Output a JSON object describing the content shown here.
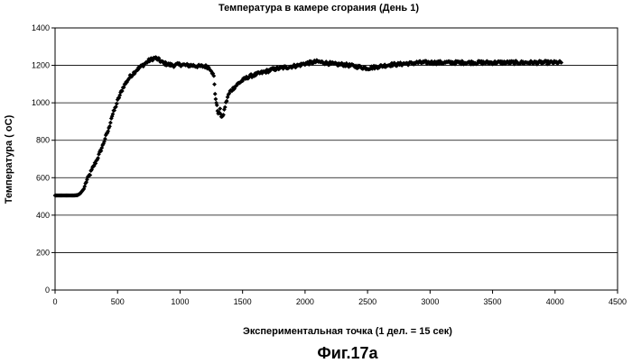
{
  "figure_caption": "Фиг.17а",
  "chart_data": {
    "type": "scatter",
    "title": "Температура в камере сгорания (День 1)",
    "xlabel": "Экспериментальная точка (1 дел. = 15 сек)",
    "ylabel": "Температура ( оС)",
    "xlim": [
      0,
      4500
    ],
    "ylim": [
      0,
      1400
    ],
    "x_ticks": [
      0,
      500,
      1000,
      1500,
      2000,
      2500,
      3000,
      3500,
      4000,
      4500
    ],
    "y_ticks": [
      0,
      200,
      400,
      600,
      800,
      1000,
      1200,
      1400
    ],
    "grid": "horizontal",
    "marker": "diamond",
    "marker_color": "#000000",
    "series": [
      {
        "points": [
          [
            0,
            505
          ],
          [
            50,
            505
          ],
          [
            100,
            505
          ],
          [
            150,
            505
          ],
          [
            180,
            507
          ],
          [
            200,
            515
          ],
          [
            230,
            540
          ],
          [
            250,
            580
          ],
          [
            280,
            620
          ],
          [
            300,
            650
          ],
          [
            330,
            690
          ],
          [
            350,
            720
          ],
          [
            380,
            770
          ],
          [
            400,
            810
          ],
          [
            430,
            860
          ],
          [
            450,
            920
          ],
          [
            480,
            970
          ],
          [
            500,
            1010
          ],
          [
            530,
            1060
          ],
          [
            550,
            1090
          ],
          [
            580,
            1120
          ],
          [
            600,
            1140
          ],
          [
            630,
            1160
          ],
          [
            650,
            1175
          ],
          [
            680,
            1190
          ],
          [
            700,
            1200
          ],
          [
            730,
            1215
          ],
          [
            750,
            1225
          ],
          [
            780,
            1235
          ],
          [
            800,
            1240
          ],
          [
            830,
            1230
          ],
          [
            860,
            1215
          ],
          [
            900,
            1205
          ],
          [
            950,
            1200
          ],
          [
            1000,
            1205
          ],
          [
            1050,
            1200
          ],
          [
            1100,
            1200
          ],
          [
            1150,
            1195
          ],
          [
            1200,
            1195
          ],
          [
            1230,
            1190
          ],
          [
            1250,
            1175
          ],
          [
            1270,
            1140
          ],
          [
            1280,
            1050
          ],
          [
            1290,
            1000
          ],
          [
            1300,
            960
          ],
          [
            1310,
            940
          ],
          [
            1320,
            960
          ],
          [
            1330,
            930
          ],
          [
            1340,
            920
          ],
          [
            1360,
            980
          ],
          [
            1380,
            1030
          ],
          [
            1400,
            1060
          ],
          [
            1430,
            1080
          ],
          [
            1460,
            1100
          ],
          [
            1500,
            1120
          ],
          [
            1550,
            1140
          ],
          [
            1600,
            1150
          ],
          [
            1650,
            1160
          ],
          [
            1700,
            1170
          ],
          [
            1750,
            1180
          ],
          [
            1800,
            1185
          ],
          [
            1850,
            1190
          ],
          [
            1900,
            1195
          ],
          [
            1950,
            1200
          ],
          [
            2000,
            1210
          ],
          [
            2050,
            1215
          ],
          [
            2100,
            1220
          ],
          [
            2150,
            1215
          ],
          [
            2200,
            1210
          ],
          [
            2250,
            1205
          ],
          [
            2300,
            1205
          ],
          [
            2350,
            1200
          ],
          [
            2400,
            1195
          ],
          [
            2450,
            1190
          ],
          [
            2500,
            1185
          ],
          [
            2550,
            1190
          ],
          [
            2600,
            1195
          ],
          [
            2650,
            1200
          ],
          [
            2700,
            1205
          ],
          [
            2750,
            1205
          ],
          [
            2800,
            1210
          ],
          [
            2850,
            1210
          ],
          [
            2900,
            1215
          ],
          [
            2950,
            1215
          ],
          [
            3000,
            1215
          ],
          [
            3050,
            1215
          ],
          [
            3100,
            1215
          ],
          [
            3150,
            1215
          ],
          [
            3200,
            1215
          ],
          [
            3250,
            1215
          ],
          [
            3300,
            1215
          ],
          [
            3350,
            1215
          ],
          [
            3400,
            1215
          ],
          [
            3450,
            1215
          ],
          [
            3500,
            1215
          ],
          [
            3550,
            1215
          ],
          [
            3600,
            1215
          ],
          [
            3650,
            1215
          ],
          [
            3700,
            1215
          ],
          [
            3750,
            1215
          ],
          [
            3800,
            1215
          ],
          [
            3850,
            1215
          ],
          [
            3900,
            1215
          ],
          [
            3950,
            1215
          ],
          [
            4000,
            1215
          ],
          [
            4050,
            1215
          ]
        ],
        "noise": 18
      }
    ]
  }
}
